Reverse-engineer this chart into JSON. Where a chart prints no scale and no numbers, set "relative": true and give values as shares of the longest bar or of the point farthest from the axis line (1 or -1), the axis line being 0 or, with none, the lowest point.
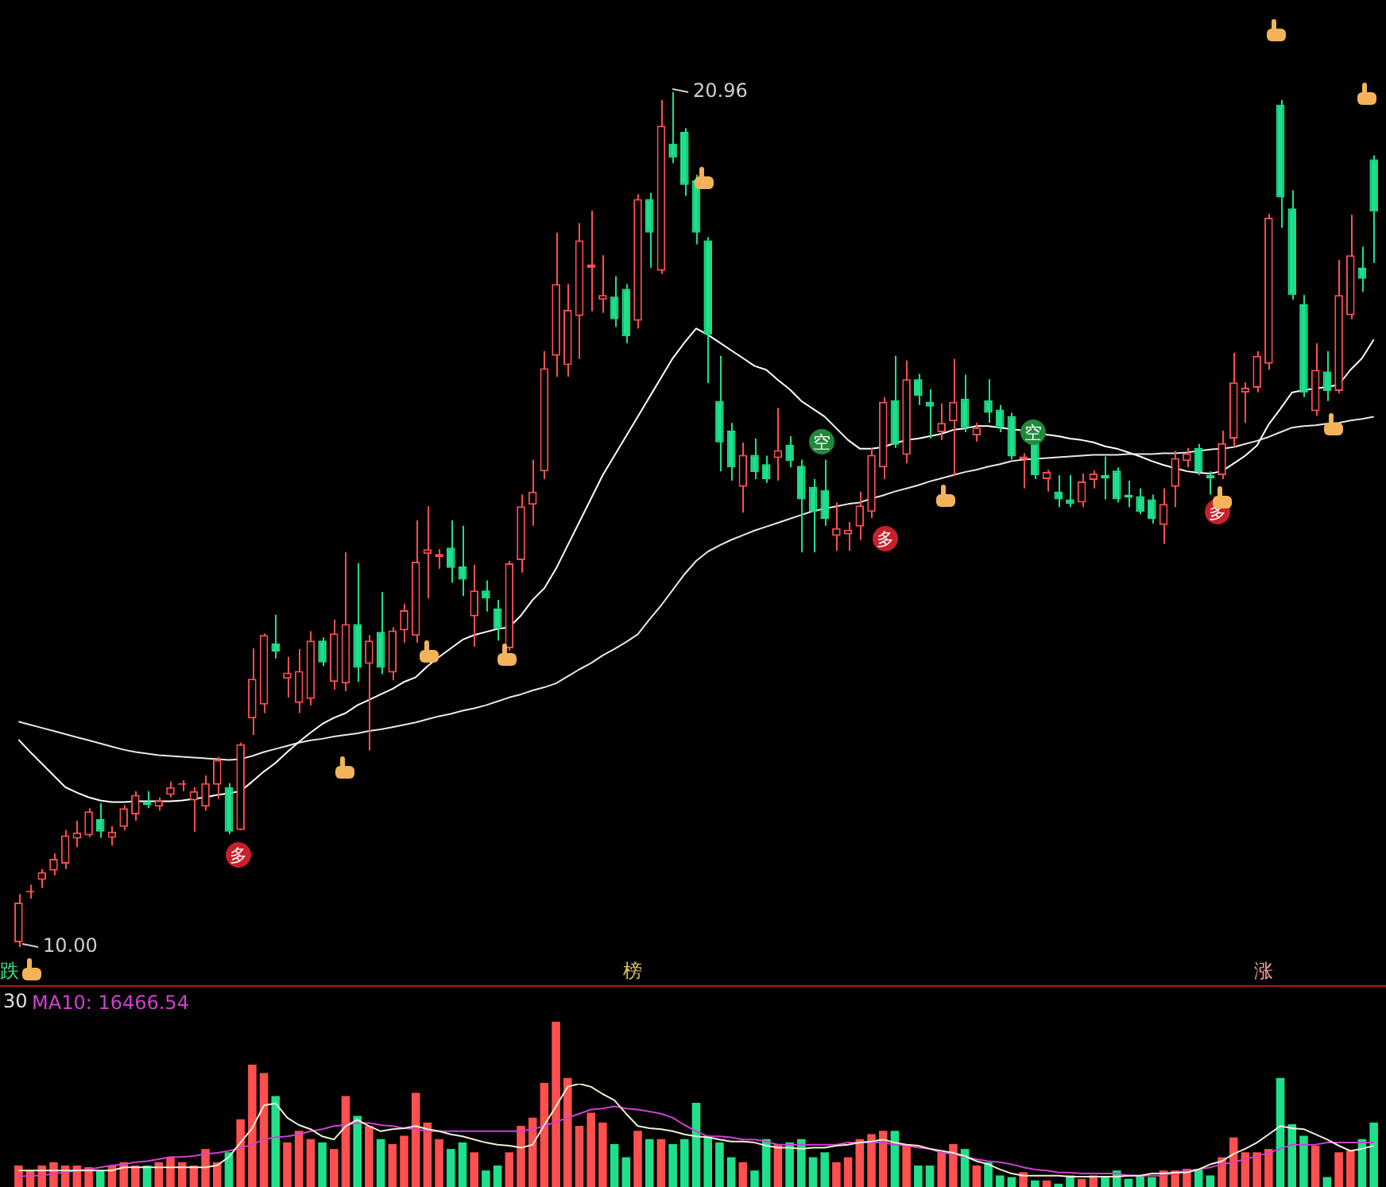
{
  "chart_data": [
    {
      "type": "candlestick",
      "categories": [
        null,
        null,
        null,
        null,
        null,
        null,
        null,
        null,
        null,
        null,
        null,
        null,
        null,
        null,
        null,
        null,
        null,
        null,
        null,
        null,
        null,
        null,
        null,
        null,
        null,
        null,
        null,
        null,
        null,
        null,
        null,
        null,
        null,
        null,
        null,
        null,
        null,
        null,
        null,
        null,
        null,
        null,
        null,
        null,
        null,
        null,
        null,
        null,
        null,
        null,
        null,
        null,
        null,
        null,
        null,
        null,
        null,
        null,
        null,
        null,
        null,
        null,
        null,
        null,
        null,
        null,
        null,
        null,
        null,
        null,
        null,
        null,
        null,
        null,
        null,
        null,
        null,
        null,
        null,
        null,
        null,
        null,
        null,
        null,
        null,
        null,
        null,
        null,
        null,
        null,
        null,
        null,
        null,
        null,
        null,
        null,
        null,
        null,
        null,
        null,
        null,
        null,
        null,
        null,
        null,
        null,
        null,
        null,
        null,
        null,
        null,
        null,
        null,
        null,
        null,
        null,
        null
      ],
      "ohlc": [
        [
          10.06,
          10.68,
          10.0,
          10.57
        ],
        [
          10.7,
          10.8,
          10.62,
          10.72
        ],
        [
          10.86,
          11.0,
          10.76,
          10.96
        ],
        [
          10.98,
          11.2,
          10.92,
          11.13
        ],
        [
          11.07,
          11.5,
          11.0,
          11.43
        ],
        [
          11.39,
          11.62,
          11.28,
          11.47
        ],
        [
          11.43,
          11.78,
          11.41,
          11.74
        ],
        [
          11.64,
          11.84,
          11.4,
          11.48
        ],
        [
          11.4,
          11.55,
          11.3,
          11.48
        ],
        [
          11.54,
          11.82,
          11.5,
          11.78
        ],
        [
          11.7,
          12.0,
          11.62,
          11.95
        ],
        [
          11.86,
          12.0,
          11.78,
          11.82
        ],
        [
          11.8,
          11.92,
          11.75,
          11.88
        ],
        [
          11.95,
          12.12,
          11.92,
          12.05
        ],
        [
          12.08,
          12.14,
          12.0,
          12.1
        ],
        [
          11.88,
          12.05,
          11.48,
          12.0
        ],
        [
          11.8,
          12.2,
          11.75,
          12.1
        ],
        [
          12.08,
          12.44,
          11.9,
          12.4
        ],
        [
          12.05,
          12.1,
          11.45,
          11.48
        ],
        [
          11.5,
          12.62,
          11.5,
          12.6
        ],
        [
          12.93,
          13.83,
          12.72,
          13.44
        ],
        [
          13.11,
          14.02,
          13.0,
          14.0
        ],
        [
          13.89,
          14.26,
          13.7,
          13.79
        ],
        [
          13.44,
          13.72,
          13.2,
          13.52
        ],
        [
          13.13,
          13.82,
          13.0,
          13.54
        ],
        [
          13.18,
          14.05,
          13.1,
          13.93
        ],
        [
          13.93,
          13.97,
          13.6,
          13.65
        ],
        [
          13.4,
          14.2,
          13.3,
          14.02
        ],
        [
          13.38,
          15.06,
          13.28,
          14.14
        ],
        [
          14.14,
          14.92,
          13.4,
          13.58
        ],
        [
          13.63,
          14.0,
          12.52,
          13.93
        ],
        [
          14.04,
          14.55,
          13.5,
          13.58
        ],
        [
          13.52,
          14.1,
          13.42,
          14.06
        ],
        [
          14.06,
          14.4,
          13.9,
          14.32
        ],
        [
          13.99,
          15.47,
          13.9,
          14.94
        ],
        [
          15.04,
          15.65,
          14.47,
          15.1
        ],
        [
          15.0,
          15.1,
          14.85,
          15.04
        ],
        [
          15.12,
          15.47,
          14.67,
          14.86
        ],
        [
          14.88,
          15.4,
          14.5,
          14.71
        ],
        [
          14.24,
          14.9,
          13.85,
          14.57
        ],
        [
          14.57,
          14.7,
          14.3,
          14.47
        ],
        [
          14.34,
          14.45,
          13.93,
          14.08
        ],
        [
          13.83,
          14.95,
          13.8,
          14.92
        ],
        [
          14.96,
          15.8,
          14.8,
          15.65
        ],
        [
          15.67,
          16.25,
          15.4,
          15.84
        ],
        [
          16.1,
          17.64,
          16.0,
          17.42
        ],
        [
          17.58,
          19.16,
          17.31,
          18.5
        ],
        [
          17.46,
          18.5,
          17.31,
          18.17
        ],
        [
          18.09,
          19.28,
          17.54,
          19.06
        ],
        [
          18.71,
          19.44,
          18.15,
          18.75
        ],
        [
          18.3,
          18.87,
          18.13,
          18.36
        ],
        [
          18.34,
          18.6,
          17.95,
          18.05
        ],
        [
          18.44,
          18.5,
          17.74,
          17.83
        ],
        [
          18.03,
          19.65,
          17.93,
          19.59
        ],
        [
          19.59,
          19.67,
          18.71,
          19.16
        ],
        [
          18.67,
          20.86,
          18.63,
          20.53
        ],
        [
          20.3,
          20.96,
          20.05,
          20.12
        ],
        [
          20.45,
          20.5,
          19.63,
          19.77
        ],
        [
          19.83,
          19.9,
          19.01,
          19.16
        ],
        [
          19.06,
          19.1,
          17.23,
          17.85
        ],
        [
          17.0,
          17.58,
          16.1,
          16.47
        ],
        [
          16.62,
          16.72,
          15.98,
          16.15
        ],
        [
          15.9,
          16.47,
          15.57,
          16.31
        ],
        [
          16.31,
          16.52,
          16.0,
          16.09
        ],
        [
          16.19,
          16.3,
          15.95,
          16.0
        ],
        [
          16.27,
          16.91,
          15.98,
          16.37
        ],
        [
          16.44,
          16.55,
          16.15,
          16.23
        ],
        [
          16.17,
          16.25,
          15.06,
          15.74
        ],
        [
          15.9,
          16.0,
          15.06,
          15.58
        ],
        [
          15.86,
          16.25,
          15.4,
          15.49
        ],
        [
          15.27,
          15.7,
          15.08,
          15.37
        ],
        [
          15.29,
          15.45,
          15.08,
          15.35
        ],
        [
          15.39,
          15.84,
          15.22,
          15.66
        ],
        [
          15.58,
          16.4,
          15.5,
          16.31
        ],
        [
          16.15,
          17.05,
          16.0,
          16.99
        ],
        [
          17.01,
          17.58,
          16.4,
          16.44
        ],
        [
          16.31,
          17.52,
          16.2,
          17.28
        ],
        [
          17.28,
          17.35,
          16.95,
          17.07
        ],
        [
          16.99,
          17.15,
          16.52,
          16.93
        ],
        [
          16.6,
          16.97,
          16.5,
          16.72
        ],
        [
          16.74,
          17.54,
          16.05,
          16.99
        ],
        [
          17.03,
          17.34,
          16.6,
          16.66
        ],
        [
          16.56,
          16.72,
          16.48,
          16.66
        ],
        [
          17.01,
          17.28,
          16.72,
          16.85
        ],
        [
          16.89,
          16.95,
          16.6,
          16.66
        ],
        [
          16.81,
          16.85,
          16.25,
          16.29
        ],
        [
          16.25,
          16.33,
          15.88,
          16.29
        ],
        [
          16.46,
          16.5,
          16.0,
          16.05
        ],
        [
          16.0,
          16.12,
          15.84,
          16.09
        ],
        [
          15.84,
          16.05,
          15.64,
          15.74
        ],
        [
          15.74,
          16.05,
          15.64,
          15.68
        ],
        [
          15.7,
          16.07,
          15.64,
          15.97
        ],
        [
          15.99,
          16.11,
          15.88,
          16.07
        ],
        [
          16.05,
          16.29,
          15.74,
          16.01
        ],
        [
          16.11,
          16.15,
          15.7,
          15.74
        ],
        [
          15.8,
          15.98,
          15.64,
          15.76
        ],
        [
          15.78,
          15.88,
          15.55,
          15.58
        ],
        [
          15.74,
          15.8,
          15.43,
          15.49
        ],
        [
          15.41,
          15.88,
          15.17,
          15.68
        ],
        [
          15.9,
          16.36,
          15.64,
          16.27
        ],
        [
          16.23,
          16.4,
          16.15,
          16.33
        ],
        [
          16.4,
          16.45,
          16.05,
          16.09
        ],
        [
          16.05,
          16.1,
          15.8,
          16.01
        ],
        [
          16.05,
          16.62,
          16.0,
          16.46
        ],
        [
          16.52,
          17.62,
          16.4,
          17.24
        ],
        [
          17.11,
          17.24,
          16.72,
          17.17
        ],
        [
          17.17,
          17.64,
          17.11,
          17.58
        ],
        [
          17.48,
          19.4,
          17.4,
          19.35
        ],
        [
          20.8,
          20.86,
          19.22,
          19.61
        ],
        [
          19.47,
          19.7,
          18.3,
          18.36
        ],
        [
          18.24,
          18.36,
          17.05,
          17.11
        ],
        [
          16.87,
          17.74,
          16.81,
          17.4
        ],
        [
          17.38,
          17.64,
          17.0,
          17.13
        ],
        [
          17.13,
          18.81,
          17.1,
          18.36
        ],
        [
          18.1,
          19.39,
          18.05,
          18.87
        ],
        [
          18.71,
          18.98,
          18.4,
          18.57
        ],
        [
          20.1,
          20.15,
          18.77,
          19.43
        ]
      ],
      "colors": [
        "#ff4f4f",
        "#ff4f4f",
        "#ff4f4f",
        "#ff4f4f",
        "#ff4f4f",
        "#ff4f4f",
        "#ff4f4f",
        "#1ee08a",
        "#ff4f4f",
        "#ff4f4f",
        "#ff4f4f",
        "#1ee08a",
        "#ff4f4f",
        "#ff4f4f",
        "#ff4f4f",
        "#ff4f4f",
        "#ff4f4f",
        "#ff4f4f",
        "#1ee08a",
        "#ff4f4f",
        "#ff4f4f",
        "#ff4f4f",
        "#1ee08a",
        "#ff4f4f",
        "#ff4f4f",
        "#ff4f4f",
        "#1ee08a",
        "#ff4f4f",
        "#ff4f4f",
        "#1ee08a",
        "#ff4f4f",
        "#1ee08a",
        "#ff4f4f",
        "#ff4f4f",
        "#ff4f4f",
        "#ff4f4f",
        "#ff4f4f",
        "#1ee08a",
        "#1ee08a",
        "#ff4f4f",
        "#1ee08a",
        "#1ee08a",
        "#ff4f4f",
        "#ff4f4f",
        "#ff4f4f",
        "#ff4f4f",
        "#ff4f4f",
        "#ff4f4f",
        "#ff4f4f",
        "#ff4f4f",
        "#ff4f4f",
        "#1ee08a",
        "#1ee08a",
        "#ff4f4f",
        "#1ee08a",
        "#ff4f4f",
        "#1ee08a",
        "#1ee08a",
        "#1ee08a",
        "#1ee08a",
        "#1ee08a",
        "#1ee08a",
        "#ff4f4f",
        "#1ee08a",
        "#1ee08a",
        "#ff4f4f",
        "#1ee08a",
        "#1ee08a",
        "#1ee08a",
        "#1ee08a",
        "#ff4f4f",
        "#ff4f4f",
        "#ff4f4f",
        "#ff4f4f",
        "#ff4f4f",
        "#1ee08a",
        "#ff4f4f",
        "#1ee08a",
        "#1ee08a",
        "#ff4f4f",
        "#ff4f4f",
        "#1ee08a",
        "#ff4f4f",
        "#1ee08a",
        "#1ee08a",
        "#1ee08a",
        "#ff4f4f",
        "#1ee08a",
        "#ff4f4f",
        "#1ee08a",
        "#1ee08a",
        "#ff4f4f",
        "#ff4f4f",
        "#1ee08a",
        "#1ee08a",
        "#1ee08a",
        "#1ee08a",
        "#1ee08a",
        "#ff4f4f",
        "#ff4f4f",
        "#ff4f4f",
        "#1ee08a",
        "#1ee08a",
        "#ff4f4f",
        "#ff4f4f",
        "#ff4f4f",
        "#ff4f4f",
        "#ff4f4f",
        "#1ee08a",
        "#1ee08a",
        "#1ee08a",
        "#ff4f4f",
        "#1ee08a",
        "#ff4f4f",
        "#ff4f4f",
        "#1ee08a",
        "#1ee08a"
      ],
      "series": [
        {
          "type": "line",
          "color": "#ffffff",
          "values": [
            12.66,
            12.5,
            12.35,
            12.2,
            12.05,
            11.98,
            11.92,
            11.88,
            11.86,
            11.86,
            11.87,
            11.87,
            11.87,
            11.87,
            11.88,
            11.9,
            11.92,
            11.95,
            11.97,
            12.0,
            12.12,
            12.25,
            12.36,
            12.5,
            12.63,
            12.75,
            12.86,
            12.94,
            13.0,
            13.1,
            13.17,
            13.24,
            13.31,
            13.4,
            13.46,
            13.6,
            13.72,
            13.83,
            13.94,
            14.0,
            14.04,
            14.08,
            14.1,
            14.25,
            14.45,
            14.6,
            14.85,
            15.15,
            15.45,
            15.75,
            16.05,
            16.3,
            16.55,
            16.8,
            17.05,
            17.3,
            17.55,
            17.75,
            17.93,
            17.85,
            17.75,
            17.65,
            17.55,
            17.45,
            17.4,
            17.27,
            17.15,
            17.0,
            16.9,
            16.8,
            16.65,
            16.5,
            16.39,
            16.39,
            16.41,
            16.46,
            16.5,
            16.52,
            16.55,
            16.58,
            16.63,
            16.65,
            16.68,
            16.68,
            16.66,
            16.64,
            16.62,
            16.6,
            16.57,
            16.55,
            16.52,
            16.5,
            16.47,
            16.42,
            16.39,
            16.34,
            16.29,
            16.23,
            16.18,
            16.14,
            16.1,
            16.08,
            16.07,
            16.1,
            16.2,
            16.3,
            16.43,
            16.7,
            16.9,
            17.11,
            17.14,
            17.16,
            17.18,
            17.21,
            17.4,
            17.55,
            17.79
          ]
        },
        {
          "type": "line",
          "color": "#e8e8e8",
          "values": [
            12.89,
            12.85,
            12.81,
            12.77,
            12.73,
            12.69,
            12.65,
            12.61,
            12.57,
            12.53,
            12.5,
            12.48,
            12.46,
            12.45,
            12.44,
            12.43,
            12.42,
            12.41,
            12.4,
            12.41,
            12.45,
            12.5,
            12.54,
            12.58,
            12.62,
            12.65,
            12.67,
            12.7,
            12.72,
            12.74,
            12.77,
            12.79,
            12.82,
            12.85,
            12.88,
            12.92,
            12.96,
            12.99,
            13.03,
            13.06,
            13.1,
            13.15,
            13.2,
            13.24,
            13.29,
            13.33,
            13.38,
            13.47,
            13.56,
            13.64,
            13.74,
            13.82,
            13.91,
            14.01,
            14.2,
            14.38,
            14.58,
            14.78,
            14.95,
            15.07,
            15.15,
            15.22,
            15.28,
            15.34,
            15.39,
            15.44,
            15.49,
            15.54,
            15.59,
            15.62,
            15.65,
            15.68,
            15.7,
            15.75,
            15.79,
            15.84,
            15.88,
            15.92,
            15.97,
            16.01,
            16.05,
            16.09,
            16.12,
            16.16,
            16.19,
            16.23,
            16.25,
            16.26,
            16.27,
            16.28,
            16.29,
            16.3,
            16.31,
            16.31,
            16.31,
            16.32,
            16.32,
            16.32,
            16.33,
            16.33,
            16.34,
            16.36,
            16.38,
            16.39,
            16.41,
            16.45,
            16.49,
            16.54,
            16.6,
            16.66,
            16.68,
            16.69,
            16.71,
            16.72,
            16.75,
            16.77,
            16.8
          ]
        }
      ],
      "marker": "none",
      "annotations": [
        "20.96",
        "10.00",
        "多",
        "空",
        "多",
        "空",
        "多",
        "跌",
        "榜",
        "涨"
      ]
    },
    {
      "type": "bar",
      "relative": true,
      "categories": [
        null,
        null,
        null,
        null,
        null,
        null,
        null,
        null,
        null,
        null,
        null,
        null,
        null,
        null,
        null,
        null,
        null,
        null,
        null,
        null,
        null,
        null,
        null,
        null,
        null,
        null,
        null,
        null,
        null,
        null,
        null,
        null,
        null,
        null,
        null,
        null,
        null,
        null,
        null,
        null,
        null,
        null,
        null,
        null,
        null,
        null,
        null,
        null,
        null,
        null,
        null,
        null,
        null,
        null,
        null,
        null,
        null,
        null,
        null,
        null,
        null,
        null,
        null,
        null,
        null,
        null,
        null,
        null,
        null,
        null,
        null,
        null,
        null,
        null,
        null,
        null,
        null,
        null,
        null,
        null,
        null,
        null,
        null,
        null,
        null,
        null,
        null,
        null,
        null,
        null,
        null,
        null,
        null,
        null,
        null,
        null,
        null,
        null,
        null,
        null,
        null,
        null,
        null,
        null,
        null,
        null,
        null,
        null,
        null,
        null,
        null,
        null,
        null,
        null,
        null,
        null,
        null
      ],
      "values": [
        0.13,
        0.1,
        0.13,
        0.15,
        0.13,
        0.13,
        0.12,
        0.1,
        0.13,
        0.15,
        0.13,
        0.13,
        0.15,
        0.18,
        0.15,
        0.13,
        0.23,
        0.15,
        0.21,
        0.41,
        0.74,
        0.69,
        0.55,
        0.27,
        0.34,
        0.29,
        0.27,
        0.23,
        0.55,
        0.43,
        0.37,
        0.29,
        0.26,
        0.31,
        0.57,
        0.39,
        0.29,
        0.23,
        0.27,
        0.21,
        0.1,
        0.13,
        0.21,
        0.37,
        0.42,
        0.63,
        1,
        0.66,
        0.37,
        0.45,
        0.39,
        0.26,
        0.18,
        0.34,
        0.29,
        0.29,
        0.26,
        0.29,
        0.51,
        0.31,
        0.27,
        0.18,
        0.15,
        0.1,
        0.29,
        0.26,
        0.27,
        0.29,
        0.18,
        0.21,
        0.15,
        0.18,
        0.29,
        0.32,
        0.34,
        0.34,
        0.26,
        0.13,
        0.13,
        0.21,
        0.26,
        0.23,
        0.13,
        0.15,
        0.07,
        0.06,
        0.09,
        0.04,
        0.04,
        0.02,
        0.07,
        0.05,
        0.07,
        0.06,
        0.1,
        0.05,
        0.07,
        0.06,
        0.1,
        0.1,
        0.11,
        0.11,
        0.07,
        0.18,
        0.3,
        0.21,
        0.21,
        0.23,
        0.66,
        0.38,
        0.31,
        0.25,
        0.06,
        0.21,
        0.22,
        0.29,
        0.39
      ],
      "colors": [
        "#ff4f4f",
        "#ff4f4f",
        "#ff4f4f",
        "#ff4f4f",
        "#ff4f4f",
        "#ff4f4f",
        "#ff4f4f",
        "#1ee08a",
        "#ff4f4f",
        "#ff4f4f",
        "#ff4f4f",
        "#1ee08a",
        "#ff4f4f",
        "#ff4f4f",
        "#ff4f4f",
        "#ff4f4f",
        "#ff4f4f",
        "#ff4f4f",
        "#1ee08a",
        "#ff4f4f",
        "#ff4f4f",
        "#ff4f4f",
        "#1ee08a",
        "#ff4f4f",
        "#ff4f4f",
        "#ff4f4f",
        "#1ee08a",
        "#ff4f4f",
        "#ff4f4f",
        "#1ee08a",
        "#ff4f4f",
        "#1ee08a",
        "#ff4f4f",
        "#ff4f4f",
        "#ff4f4f",
        "#ff4f4f",
        "#ff4f4f",
        "#1ee08a",
        "#1ee08a",
        "#ff4f4f",
        "#1ee08a",
        "#1ee08a",
        "#ff4f4f",
        "#ff4f4f",
        "#ff4f4f",
        "#ff4f4f",
        "#ff4f4f",
        "#ff4f4f",
        "#ff4f4f",
        "#ff4f4f",
        "#ff4f4f",
        "#1ee08a",
        "#1ee08a",
        "#ff4f4f",
        "#1ee08a",
        "#ff4f4f",
        "#1ee08a",
        "#1ee08a",
        "#1ee08a",
        "#1ee08a",
        "#1ee08a",
        "#1ee08a",
        "#ff4f4f",
        "#1ee08a",
        "#1ee08a",
        "#ff4f4f",
        "#1ee08a",
        "#1ee08a",
        "#1ee08a",
        "#1ee08a",
        "#ff4f4f",
        "#ff4f4f",
        "#ff4f4f",
        "#ff4f4f",
        "#ff4f4f",
        "#1ee08a",
        "#ff4f4f",
        "#1ee08a",
        "#1ee08a",
        "#ff4f4f",
        "#ff4f4f",
        "#1ee08a",
        "#ff4f4f",
        "#1ee08a",
        "#1ee08a",
        "#1ee08a",
        "#ff4f4f",
        "#1ee08a",
        "#ff4f4f",
        "#1ee08a",
        "#1ee08a",
        "#ff4f4f",
        "#ff4f4f",
        "#1ee08a",
        "#1ee08a",
        "#1ee08a",
        "#1ee08a",
        "#1ee08a",
        "#ff4f4f",
        "#ff4f4f",
        "#ff4f4f",
        "#1ee08a",
        "#1ee08a",
        "#ff4f4f",
        "#ff4f4f",
        "#ff4f4f",
        "#ff4f4f",
        "#ff4f4f",
        "#1ee08a",
        "#1ee08a",
        "#1ee08a",
        "#ff4f4f",
        "#1ee08a",
        "#ff4f4f",
        "#ff4f4f",
        "#1ee08a",
        "#1ee08a"
      ]
    },
    {
      "type": "line",
      "relative": true,
      "marker": "none",
      "categories": [
        null,
        null,
        null,
        null,
        null,
        null,
        null,
        null,
        null,
        null,
        null,
        null,
        null,
        null,
        null,
        null,
        null,
        null,
        null,
        null,
        null,
        null,
        null,
        null,
        null,
        null,
        null,
        null,
        null,
        null,
        null,
        null,
        null,
        null,
        null,
        null,
        null,
        null,
        null,
        null,
        null,
        null,
        null,
        null,
        null,
        null,
        null,
        null,
        null,
        null,
        null,
        null,
        null,
        null,
        null,
        null,
        null,
        null,
        null,
        null,
        null,
        null,
        null,
        null,
        null,
        null,
        null,
        null,
        null,
        null,
        null,
        null,
        null,
        null,
        null,
        null,
        null,
        null,
        null,
        null,
        null,
        null,
        null,
        null,
        null,
        null,
        null,
        null,
        null,
        null,
        null,
        null,
        null,
        null,
        null,
        null,
        null,
        null,
        null,
        null,
        null,
        null,
        null,
        null,
        null,
        null,
        null,
        null,
        null,
        null,
        null,
        null,
        null,
        null,
        null,
        null,
        null
      ],
      "series": [
        {
          "type": "line",
          "color": "#f0f0d0",
          "values": [
            0.16,
            0.16,
            0.16,
            0.16,
            0.16,
            0.16,
            0.16,
            0.16,
            0.16,
            0.19,
            0.19,
            0.19,
            0.19,
            0.19,
            0.19,
            0.19,
            0.19,
            0.21,
            0.29,
            0.43,
            0.57,
            0.79,
            0.81,
            0.67,
            0.6,
            0.56,
            0.49,
            0.46,
            0.59,
            0.65,
            0.59,
            0.54,
            0.56,
            0.57,
            0.59,
            0.56,
            0.54,
            0.51,
            0.49,
            0.46,
            0.43,
            0.41,
            0.4,
            0.38,
            0.41,
            0.6,
            0.78,
            0.97,
            1,
            0.97,
            0.9,
            0.84,
            0.71,
            0.59,
            0.57,
            0.56,
            0.54,
            0.51,
            0.49,
            0.48,
            0.46,
            0.44,
            0.44,
            0.43,
            0.4,
            0.38,
            0.38,
            0.37,
            0.38,
            0.38,
            0.4,
            0.41,
            0.43,
            0.44,
            0.46,
            0.43,
            0.41,
            0.4,
            0.37,
            0.35,
            0.33,
            0.3,
            0.25,
            0.22,
            0.17,
            0.13,
            0.11,
            0.11,
            0.11,
            0.11,
            0.1,
            0.1,
            0.1,
            0.1,
            0.1,
            0.11,
            0.11,
            0.13,
            0.13,
            0.14,
            0.14,
            0.17,
            0.22,
            0.25,
            0.32,
            0.37,
            0.43,
            0.51,
            0.59,
            0.57,
            0.56,
            0.51,
            0.46,
            0.4,
            0.35,
            0.37,
            0.4
          ]
        },
        {
          "type": "line",
          "name": "MA10: 16466.54",
          "color": "#d040d0",
          "values": [
            0.1,
            0.11,
            0.11,
            0.13,
            0.14,
            0.16,
            0.17,
            0.19,
            0.21,
            0.22,
            0.24,
            0.25,
            0.27,
            0.29,
            0.29,
            0.3,
            0.32,
            0.33,
            0.35,
            0.38,
            0.41,
            0.46,
            0.48,
            0.49,
            0.51,
            0.54,
            0.56,
            0.59,
            0.6,
            0.62,
            0.62,
            0.6,
            0.59,
            0.57,
            0.56,
            0.54,
            0.54,
            0.54,
            0.54,
            0.54,
            0.54,
            0.54,
            0.54,
            0.54,
            0.56,
            0.59,
            0.63,
            0.67,
            0.71,
            0.75,
            0.76,
            0.78,
            0.76,
            0.75,
            0.73,
            0.71,
            0.67,
            0.6,
            0.54,
            0.49,
            0.49,
            0.48,
            0.46,
            0.46,
            0.44,
            0.41,
            0.41,
            0.41,
            0.41,
            0.41,
            0.41,
            0.43,
            0.43,
            0.43,
            0.43,
            0.41,
            0.4,
            0.38,
            0.37,
            0.33,
            0.32,
            0.29,
            0.27,
            0.25,
            0.24,
            0.22,
            0.19,
            0.17,
            0.16,
            0.14,
            0.14,
            0.13,
            0.13,
            0.13,
            0.13,
            0.11,
            0.11,
            0.11,
            0.11,
            0.14,
            0.16,
            0.17,
            0.19,
            0.22,
            0.24,
            0.27,
            0.3,
            0.33,
            0.37,
            0.41,
            0.41,
            0.41,
            0.43,
            0.43,
            0.43,
            0.43,
            0.43
          ]
        }
      ],
      "annotations": [
        "30"
      ]
    }
  ]
}
